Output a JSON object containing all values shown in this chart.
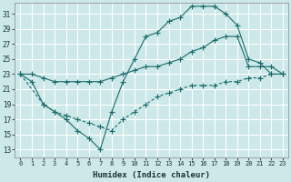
{
  "xlabel": "Humidex (Indice chaleur)",
  "bg_color": "#cce8e8",
  "grid_color": "#ffffff",
  "line_color": "#1a6b6b",
  "xlim": [
    -0.5,
    23.5
  ],
  "ylim": [
    12,
    32.5
  ],
  "xticks": [
    0,
    1,
    2,
    3,
    4,
    5,
    6,
    7,
    8,
    9,
    10,
    11,
    12,
    13,
    14,
    15,
    16,
    17,
    18,
    19,
    20,
    21,
    22,
    23
  ],
  "yticks": [
    13,
    15,
    17,
    19,
    21,
    23,
    25,
    27,
    29,
    31
  ],
  "line1_x": [
    0,
    1,
    2,
    3,
    4,
    5,
    6,
    7,
    8,
    9,
    10,
    11,
    12,
    13,
    14,
    15,
    16,
    17,
    18,
    19,
    20,
    21,
    22,
    23
  ],
  "line1_y": [
    23,
    22,
    19,
    18,
    17,
    15.5,
    14.5,
    13,
    18,
    22,
    25,
    28,
    28.5,
    30,
    30.5,
    32,
    32,
    32,
    31,
    29.5,
    25,
    24.5,
    23,
    23
  ],
  "line2_x": [
    0,
    1,
    2,
    3,
    4,
    5,
    6,
    7,
    8,
    9,
    10,
    11,
    12,
    13,
    14,
    15,
    16,
    17,
    18,
    19,
    20,
    21,
    22,
    23
  ],
  "line2_y": [
    23,
    23,
    22.5,
    22,
    22,
    22,
    22,
    22,
    22.5,
    23,
    23.5,
    24,
    24,
    24.5,
    25,
    26,
    26.5,
    27.5,
    28,
    28,
    24,
    24,
    24,
    23
  ],
  "line3_x": [
    0,
    2,
    3,
    4,
    5,
    6,
    7,
    8,
    9,
    10,
    11,
    12,
    13,
    14,
    15,
    16,
    17,
    18,
    19,
    20,
    21,
    22,
    23
  ],
  "line3_y": [
    23,
    19,
    18,
    17.5,
    17,
    16.5,
    16,
    15.5,
    17,
    18,
    19,
    20,
    20.5,
    21,
    21.5,
    21.5,
    21.5,
    22,
    22,
    22.5,
    22.5,
    23,
    23
  ]
}
